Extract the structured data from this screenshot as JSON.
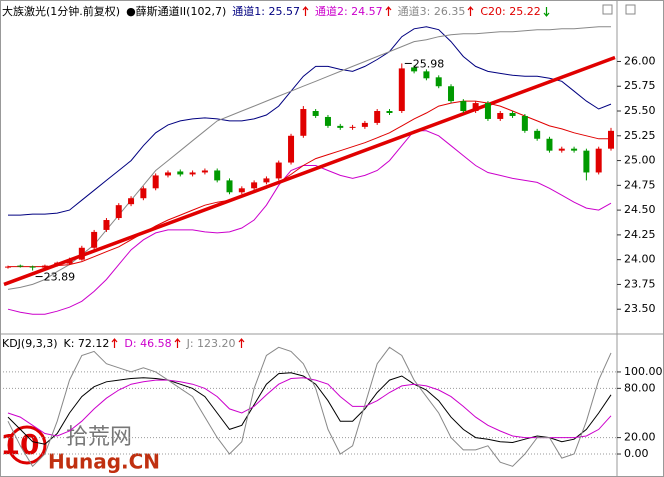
{
  "chart_data": [
    {
      "type": "candlestick",
      "title": "大族激光(1分钟.前复权)",
      "indicator": "●薛斯通道II(102,7)",
      "open": [
        23.92,
        23.94,
        23.93,
        23.92,
        23.94,
        23.96,
        24.0,
        24.12,
        24.3,
        24.42,
        24.56,
        24.62,
        24.72,
        24.85,
        24.89,
        24.86,
        24.88,
        24.9,
        24.8,
        24.68,
        24.72,
        24.78,
        24.82,
        24.98,
        25.25,
        25.5,
        25.44,
        25.35,
        25.33,
        25.34,
        25.38,
        25.5,
        25.5,
        25.94,
        25.9,
        25.84,
        25.75,
        25.6,
        25.5,
        25.58,
        25.42,
        25.48,
        25.45,
        25.3,
        25.22,
        25.1,
        25.12,
        25.1,
        24.88,
        25.12
      ],
      "high": [
        23.94,
        23.95,
        23.94,
        23.95,
        23.98,
        24.02,
        24.14,
        24.3,
        24.42,
        24.57,
        24.64,
        24.74,
        24.87,
        24.9,
        24.91,
        24.9,
        24.92,
        24.92,
        24.82,
        24.74,
        24.8,
        24.84,
        25.0,
        25.27,
        25.55,
        25.52,
        25.46,
        25.37,
        25.36,
        25.4,
        25.52,
        25.52,
        25.98,
        25.96,
        25.92,
        25.86,
        25.77,
        25.62,
        25.6,
        25.6,
        25.5,
        25.5,
        25.47,
        25.32,
        25.24,
        25.14,
        25.14,
        25.12,
        25.14,
        25.33
      ],
      "low": [
        23.91,
        23.92,
        23.89,
        23.91,
        23.93,
        23.95,
        23.99,
        24.1,
        24.28,
        24.4,
        24.54,
        24.6,
        24.7,
        24.83,
        24.84,
        24.84,
        24.86,
        24.78,
        24.66,
        24.66,
        24.7,
        24.76,
        24.8,
        24.96,
        25.23,
        25.43,
        25.33,
        25.31,
        25.31,
        25.32,
        25.36,
        25.46,
        25.48,
        25.88,
        25.81,
        25.73,
        25.58,
        25.48,
        25.48,
        25.4,
        25.4,
        25.43,
        25.28,
        25.2,
        25.08,
        25.08,
        25.08,
        24.8,
        24.86,
        25.1
      ],
      "close": [
        23.93,
        23.93,
        23.92,
        23.94,
        23.97,
        24.0,
        24.12,
        24.28,
        24.4,
        24.55,
        24.62,
        24.72,
        24.85,
        24.88,
        24.86,
        24.88,
        24.9,
        24.8,
        24.68,
        24.72,
        24.78,
        24.82,
        24.98,
        25.25,
        25.52,
        25.45,
        25.35,
        25.33,
        25.34,
        25.38,
        25.5,
        25.48,
        25.93,
        25.9,
        25.83,
        25.75,
        25.6,
        25.5,
        25.58,
        25.42,
        25.48,
        25.45,
        25.3,
        25.22,
        25.1,
        25.12,
        25.1,
        24.88,
        25.12,
        25.3
      ],
      "series": [
        {
          "name": "通道1: 25.57",
          "color": "#000080",
          "values": [
            24.45,
            24.45,
            24.46,
            24.46,
            24.47,
            24.5,
            24.6,
            24.7,
            24.8,
            24.9,
            25.0,
            25.15,
            25.28,
            25.36,
            25.4,
            25.42,
            25.43,
            25.42,
            25.4,
            25.4,
            25.42,
            25.46,
            25.55,
            25.7,
            25.85,
            25.95,
            25.95,
            25.92,
            25.9,
            25.95,
            26.02,
            26.1,
            26.25,
            26.33,
            26.35,
            26.32,
            26.2,
            26.05,
            25.95,
            25.9,
            25.88,
            25.86,
            25.85,
            25.85,
            25.83,
            25.8,
            25.7,
            25.6,
            25.52,
            25.57
          ]
        },
        {
          "name": "通道2: 24.57",
          "color": "#cc00cc",
          "values": [
            23.5,
            23.47,
            23.45,
            23.45,
            23.48,
            23.52,
            23.58,
            23.68,
            23.8,
            23.95,
            24.1,
            24.2,
            24.27,
            24.3,
            24.3,
            24.3,
            24.28,
            24.27,
            24.28,
            24.32,
            24.4,
            24.55,
            24.75,
            24.9,
            24.95,
            24.95,
            24.9,
            24.85,
            24.82,
            24.85,
            24.9,
            25.0,
            25.15,
            25.3,
            25.3,
            25.25,
            25.15,
            25.05,
            24.95,
            24.88,
            24.85,
            24.82,
            24.8,
            24.78,
            24.72,
            24.65,
            24.58,
            24.52,
            24.5,
            24.57
          ]
        },
        {
          "name": "通道3: 26.35",
          "color": "#888888",
          "values": [
            23.7,
            23.72,
            23.75,
            23.8,
            23.88,
            23.95,
            24.05,
            24.15,
            24.3,
            24.45,
            24.6,
            24.75,
            24.9,
            25.0,
            25.1,
            25.2,
            25.3,
            25.4,
            25.45,
            25.5,
            25.55,
            25.6,
            25.65,
            25.7,
            25.75,
            25.8,
            25.85,
            25.9,
            25.95,
            26.0,
            26.05,
            26.1,
            26.15,
            26.2,
            26.22,
            26.25,
            26.27,
            26.28,
            26.28,
            26.29,
            26.3,
            26.3,
            26.31,
            26.32,
            26.32,
            26.33,
            26.33,
            26.34,
            26.35,
            26.35
          ]
        },
        {
          "name": "C20: 25.22",
          "color": "#e00000",
          "values": [
            23.93,
            23.93,
            23.93,
            23.93,
            23.94,
            23.95,
            23.98,
            24.03,
            24.08,
            24.13,
            24.2,
            24.27,
            24.34,
            24.4,
            24.45,
            24.5,
            24.55,
            24.58,
            24.6,
            24.64,
            24.68,
            24.72,
            24.78,
            24.86,
            24.95,
            25.02,
            25.06,
            25.1,
            25.14,
            25.18,
            25.23,
            25.28,
            25.35,
            25.42,
            25.48,
            25.55,
            25.58,
            25.6,
            25.6,
            25.58,
            25.55,
            25.5,
            25.45,
            25.4,
            25.35,
            25.32,
            25.28,
            25.25,
            25.22,
            25.22
          ]
        }
      ],
      "trendline": {
        "color": "#e00000",
        "values": [
          23.75,
          26.04
        ]
      },
      "annotations": [
        25.98,
        23.89
      ],
      "up_color": "#e00000",
      "down_color": "#009900",
      "ylim": [
        23.26,
        26.6
      ],
      "yticks": [
        {
          "value": 23.5,
          "label": "23.50"
        },
        {
          "value": 23.75,
          "label": "23.75"
        },
        {
          "value": 24,
          "label": "24.00"
        },
        {
          "value": 24.25,
          "label": "24.25"
        },
        {
          "value": 24.5,
          "label": "24.50"
        },
        {
          "value": 24.75,
          "label": "24.75"
        },
        {
          "value": 25,
          "label": "25.00"
        },
        {
          "value": 25.25,
          "label": "25.25"
        },
        {
          "value": 25.5,
          "label": "25.50"
        },
        {
          "value": 25.75,
          "label": "25.75"
        },
        {
          "value": 26,
          "label": "26.00"
        }
      ],
      "grid": false
    },
    {
      "type": "line",
      "title": "KDJ(9,3,3)",
      "series": [
        {
          "name": "K: 72.12",
          "color": "#000000",
          "values": [
            45,
            30,
            15,
            12,
            25,
            50,
            70,
            82,
            88,
            90,
            92,
            93,
            92,
            90,
            85,
            80,
            70,
            50,
            30,
            35,
            60,
            85,
            98,
            99,
            95,
            85,
            65,
            40,
            40,
            55,
            75,
            90,
            95,
            85,
            78,
            65,
            45,
            30,
            20,
            18,
            15,
            14,
            18,
            22,
            20,
            15,
            18,
            30,
            50,
            72.12
          ]
        },
        {
          "name": "D: 46.58",
          "color": "#cc00cc",
          "values": [
            50,
            45,
            35,
            25,
            22,
            28,
            40,
            55,
            68,
            78,
            85,
            88,
            90,
            90,
            88,
            85,
            80,
            70,
            55,
            50,
            58,
            72,
            85,
            92,
            93,
            90,
            85,
            70,
            58,
            58,
            65,
            75,
            83,
            85,
            83,
            78,
            70,
            58,
            45,
            35,
            28,
            22,
            20,
            20,
            20,
            20,
            20,
            22,
            30,
            46.58
          ]
        },
        {
          "name": "J: 123.20",
          "color": "#888888",
          "values": [
            40,
            10,
            -15,
            0,
            40,
            90,
            120,
            125,
            110,
            105,
            100,
            105,
            100,
            90,
            80,
            70,
            45,
            20,
            0,
            15,
            80,
            120,
            130,
            125,
            110,
            80,
            30,
            0,
            10,
            60,
            110,
            130,
            120,
            90,
            70,
            50,
            20,
            5,
            5,
            10,
            -10,
            -15,
            0,
            20,
            20,
            -5,
            0,
            40,
            90,
            123.2
          ]
        }
      ],
      "ylim": [
        -28,
        145
      ],
      "yticks": [
        {
          "value": 0,
          "label": "0.00"
        },
        {
          "value": 20,
          "label": "20.00"
        },
        {
          "value": 80,
          "label": "80.00"
        },
        {
          "value": 100,
          "label": "100.00"
        }
      ],
      "grid": true
    }
  ],
  "watermark": {
    "logo": "10",
    "name": "拾荒网",
    "site": "Hunag.CN"
  }
}
